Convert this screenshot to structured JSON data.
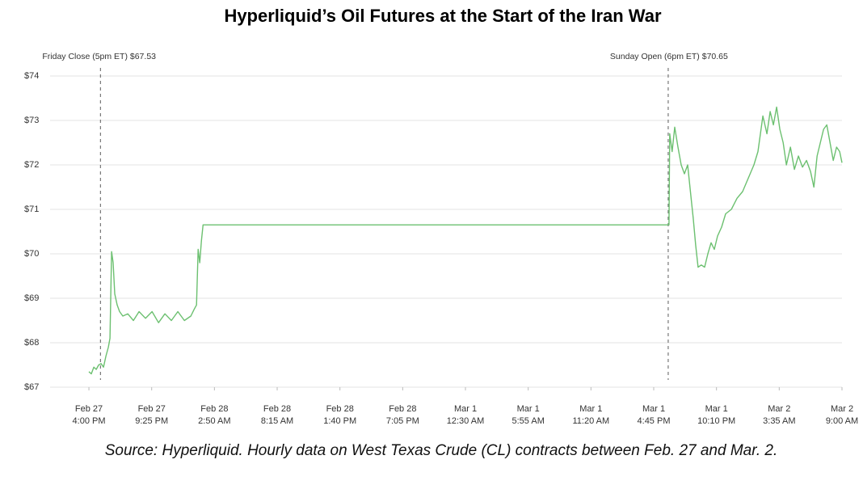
{
  "chart_data": {
    "type": "line",
    "title": "Hyperliquid’s Oil Futures at the Start of the Iran War",
    "source": "Source: Hyperliquid. Hourly data on West Texas Crude (CL) contracts between Feb. 27 and Mar. 2.",
    "x": [
      0,
      0.21,
      0.42,
      0.63,
      0.84,
      1.05,
      1.26,
      1.47,
      1.68,
      1.82,
      1.96,
      2.09,
      2.23,
      2.44,
      2.65,
      2.93,
      3.35,
      3.84,
      4.33,
      4.89,
      5.45,
      6.01,
      6.56,
      7.12,
      7.68,
      8.24,
      8.8,
      9.08,
      9.29,
      9.43,
      9.57,
      9.71,
      9.85,
      50.07,
      50.13,
      50.34,
      50.56,
      50.84,
      51.12,
      51.4,
      51.68,
      51.96,
      52.16,
      52.37,
      52.58,
      52.86,
      53.14,
      53.42,
      53.7,
      53.98,
      54.26,
      54.61,
      54.96,
      55.45,
      55.94,
      56.42,
      56.91,
      57.4,
      57.75,
      58.17,
      58.52,
      58.8,
      59.08,
      59.36,
      59.64,
      59.92,
      60.2,
      60.55,
      60.89,
      61.24,
      61.59,
      61.94,
      62.29,
      62.57,
      62.85,
      63.13,
      63.41,
      63.69,
      63.97,
      64.25,
      64.53,
      64.8,
      65
    ],
    "series": [
      {
        "color": "#6cc070",
        "values": [
          67.35,
          67.3,
          67.45,
          67.4,
          67.5,
          67.53,
          67.45,
          67.7,
          67.9,
          68.1,
          70.05,
          69.8,
          69.1,
          68.85,
          68.7,
          68.6,
          68.65,
          68.5,
          68.7,
          68.55,
          68.7,
          68.45,
          68.65,
          68.5,
          68.7,
          68.5,
          68.6,
          68.75,
          68.85,
          70.1,
          69.8,
          70.3,
          70.65,
          70.65,
          72.7,
          72.3,
          72.85,
          72.4,
          72.0,
          71.8,
          72.0,
          71.3,
          70.8,
          70.2,
          69.7,
          69.75,
          69.7,
          70.0,
          70.25,
          70.1,
          70.4,
          70.6,
          70.9,
          71.0,
          71.25,
          71.4,
          71.7,
          72.0,
          72.3,
          73.1,
          72.7,
          73.2,
          72.9,
          73.3,
          72.8,
          72.5,
          72.0,
          72.4,
          71.9,
          72.2,
          71.95,
          72.1,
          71.85,
          71.5,
          72.2,
          72.5,
          72.8,
          72.9,
          72.5,
          72.1,
          72.4,
          72.3,
          72.05
        ]
      }
    ],
    "xlim": [
      -3.35,
      65
    ],
    "xticks": [
      {
        "value": 0,
        "label": [
          "Feb 27",
          "4:00 PM"
        ]
      },
      {
        "value": 5.4167,
        "label": [
          "Feb 27",
          "9:25 PM"
        ]
      },
      {
        "value": 10.8333,
        "label": [
          "Feb 28",
          "2:50 AM"
        ]
      },
      {
        "value": 16.25,
        "label": [
          "Feb 28",
          "8:15 AM"
        ]
      },
      {
        "value": 21.6667,
        "label": [
          "Feb 28",
          "1:40 PM"
        ]
      },
      {
        "value": 27.0833,
        "label": [
          "Feb 28",
          "7:05 PM"
        ]
      },
      {
        "value": 32.5,
        "label": [
          "Mar 1",
          "12:30 AM"
        ]
      },
      {
        "value": 37.9167,
        "label": [
          "Mar 1",
          "5:55 AM"
        ]
      },
      {
        "value": 43.3333,
        "label": [
          "Mar 1",
          "11:20 AM"
        ]
      },
      {
        "value": 48.75,
        "label": [
          "Mar 1",
          "4:45 PM"
        ]
      },
      {
        "value": 54.1667,
        "label": [
          "Mar 1",
          "10:10 PM"
        ]
      },
      {
        "value": 59.5833,
        "label": [
          "Mar 2",
          "3:35 AM"
        ]
      },
      {
        "value": 65,
        "label": [
          "Mar 2",
          "9:00 AM"
        ]
      }
    ],
    "ylim": [
      67,
      74
    ],
    "yticks": [
      {
        "value": 67,
        "label": "$67"
      },
      {
        "value": 68,
        "label": "$68"
      },
      {
        "value": 69,
        "label": "$69"
      },
      {
        "value": 70,
        "label": "$70"
      },
      {
        "value": 71,
        "label": "$71"
      },
      {
        "value": 72,
        "label": "$72"
      },
      {
        "value": 73,
        "label": "$73"
      },
      {
        "value": 74,
        "label": "$74"
      }
    ],
    "grid": true,
    "annotations": [
      {
        "x": 1,
        "text": "Friday Close (5pm ET) $67.53"
      },
      {
        "x": 50,
        "text": "Sunday Open (6pm ET) $70.65"
      }
    ]
  }
}
